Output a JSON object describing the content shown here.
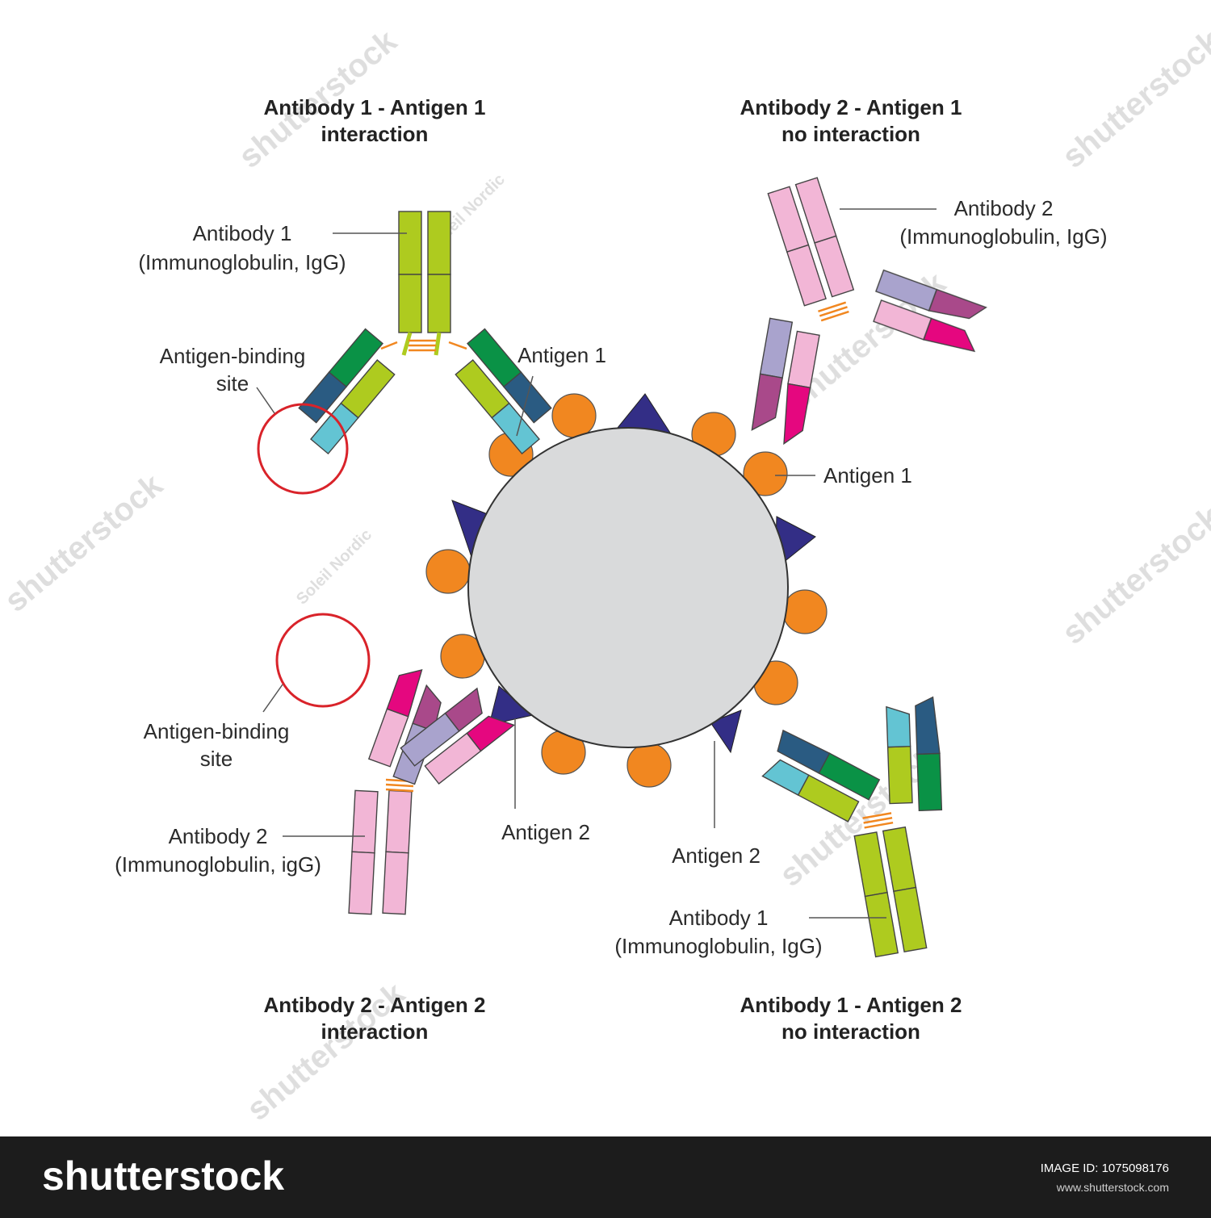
{
  "colors": {
    "lime": "#aecb1f",
    "green": "#0a9246",
    "navy": "#2a5b82",
    "cyan": "#63c4d3",
    "pink": "#f2b6d6",
    "lavender": "#a9a3cd",
    "plum": "#a9498a",
    "magenta": "#e5077f",
    "orange": "#f18720",
    "indigo": "#332e86",
    "cell": "#d9dadb",
    "disulfide": "#f18720",
    "circle": "#d9232a",
    "footer": "#1c1c1c"
  },
  "titles": {
    "top_left": [
      "Antibody 1 - Antigen 1",
      "interaction"
    ],
    "top_right": [
      "Antibody 2 - Antigen 1",
      "no interaction"
    ],
    "bottom_left": [
      "Antibody 2 - Antigen 2",
      "interaction"
    ],
    "bottom_right": [
      "Antibody 1 - Antigen 2",
      "no interaction"
    ]
  },
  "labels": {
    "antibody1_top": [
      "Antibody 1",
      "(Immunoglobulin, IgG)"
    ],
    "binding_site_top": [
      "Antigen-binding",
      "site"
    ],
    "antigen1_top": "Antigen 1",
    "antibody2_top": [
      "Antibody 2",
      "(Immunoglobulin, IgG)"
    ],
    "antigen1_right": "Antigen 1",
    "binding_site_bottom": [
      "Antigen-binding",
      "site"
    ],
    "antibody2_bottom": [
      "Antibody 2",
      "(Immunoglobulin, igG)"
    ],
    "antigen2_left": "Antigen 2",
    "antigen2_right": "Antigen 2",
    "antibody1_bottom": [
      "Antibody 1",
      "(Immunoglobulin, IgG)"
    ]
  },
  "watermark": {
    "text": "shutterstock",
    "author": "Soleil Nordic"
  },
  "footer": {
    "logo": "shutterstock",
    "image_id": "IMAGE ID: 1075098176",
    "url": "www.shutterstock.com"
  }
}
